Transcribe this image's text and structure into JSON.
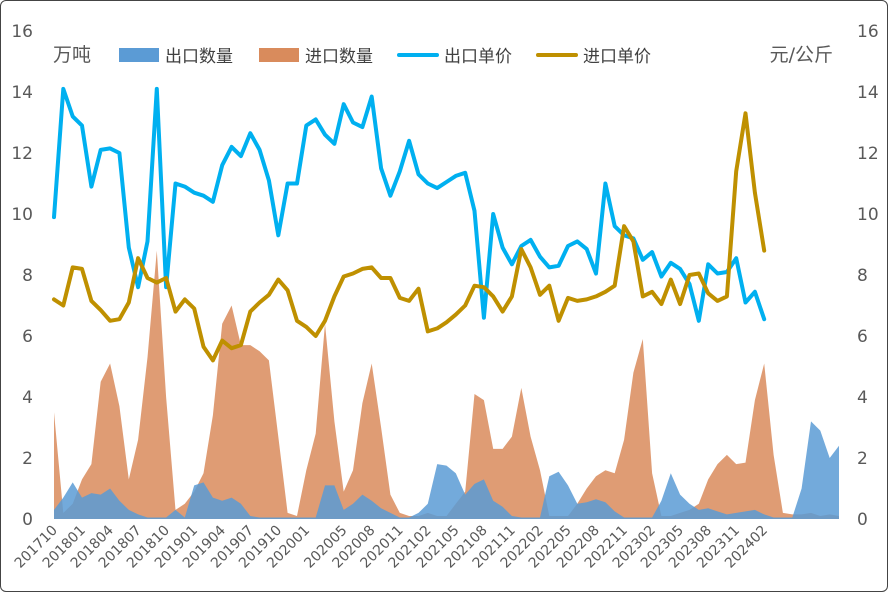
{
  "chart_data": {
    "type": "area+line",
    "title": "",
    "left_unit": "万吨",
    "right_unit": "元/公斤",
    "ylim_left": [
      0,
      16
    ],
    "ylim_right": [
      0,
      16
    ],
    "yticks": [
      "0",
      "2",
      "4",
      "6",
      "8",
      "10",
      "12",
      "14",
      "16"
    ],
    "grid": false,
    "legend_position": "top",
    "x_start": "201710",
    "x_end": "202403",
    "xtick_labels": [
      "201710",
      "201801",
      "201804",
      "201807",
      "201810",
      "201901",
      "201904",
      "201907",
      "201910",
      "202001",
      "202005",
      "202008",
      "202011",
      "202102",
      "202105",
      "202108",
      "202111",
      "202202",
      "202205",
      "202208",
      "202211",
      "202302",
      "202305",
      "202308",
      "202311",
      "202402"
    ],
    "series": [
      {
        "name": "出口数量",
        "kind": "area",
        "axis": "left",
        "color": "#5b9bd5",
        "values": [
          0.3,
          0.7,
          1.2,
          0.7,
          0.85,
          0.8,
          1.0,
          0.6,
          0.3,
          0.15,
          0.05,
          0.05,
          0.05,
          0.3,
          0.05,
          1.1,
          1.2,
          0.7,
          0.6,
          0.7,
          0.5,
          0.1,
          0.05,
          0.05,
          0.05,
          0.05,
          0.05,
          0.05,
          0.05,
          1.1,
          1.1,
          0.3,
          0.5,
          0.8,
          0.6,
          0.35,
          0.2,
          0.05,
          0.05,
          0.2,
          0.5,
          1.8,
          1.75,
          1.5,
          0.8,
          1.15,
          1.3,
          0.6,
          0.4,
          0.1,
          0.05,
          0.05,
          0.05,
          1.4,
          1.55,
          1.1,
          0.5,
          0.55,
          0.65,
          0.55,
          0.25,
          0.05,
          0.05,
          0.05,
          0.05,
          0.6,
          1.5,
          0.8,
          0.5,
          0.3,
          0.35,
          0.25,
          0.15,
          0.2,
          0.25,
          0.3,
          0.15,
          0.05,
          0.05,
          0.05,
          1.0,
          3.2,
          2.9,
          2.0,
          2.4
        ]
      },
      {
        "name": "进口数量",
        "kind": "area",
        "axis": "left",
        "color": "#d98b5c",
        "values": [
          3.5,
          0.2,
          0.5,
          1.3,
          1.8,
          4.5,
          5.1,
          3.7,
          1.3,
          2.6,
          5.3,
          8.8,
          4.0,
          0.3,
          0.5,
          0.9,
          1.5,
          3.4,
          6.4,
          7.0,
          5.7,
          5.7,
          5.5,
          5.2,
          2.7,
          0.2,
          0.1,
          1.6,
          2.8,
          6.4,
          3.2,
          0.9,
          1.6,
          3.8,
          5.1,
          3.0,
          0.8,
          0.2,
          0.1,
          0.1,
          0.2,
          0.1,
          0.1,
          0.5,
          0.9,
          4.1,
          3.9,
          2.3,
          2.3,
          2.7,
          4.3,
          2.7,
          1.6,
          0.1,
          0.1,
          0.1,
          0.5,
          1.0,
          1.4,
          1.6,
          1.5,
          2.6,
          4.8,
          5.9,
          1.5,
          0.1,
          0.1,
          0.2,
          0.3,
          0.5,
          1.3,
          1.8,
          2.1,
          1.8,
          1.85,
          3.9,
          5.1,
          2.1,
          0.2,
          0.15,
          0.15,
          0.2,
          0.1,
          0.15,
          0.1
        ]
      },
      {
        "name": "出口单价",
        "kind": "line",
        "axis": "right",
        "color": "#00b0f0",
        "values": [
          9.9,
          14.1,
          13.2,
          12.9,
          10.9,
          12.1,
          12.15,
          12.0,
          8.9,
          7.6,
          9.1,
          14.1,
          7.6,
          11.0,
          10.9,
          10.7,
          10.6,
          10.4,
          11.6,
          12.2,
          11.9,
          12.65,
          12.1,
          11.1,
          9.3,
          11.0,
          11.0,
          12.9,
          13.1,
          12.6,
          12.3,
          13.6,
          13.0,
          12.85,
          13.85,
          11.5,
          10.6,
          11.4,
          12.4,
          11.3,
          11.0,
          10.85,
          11.05,
          11.25,
          11.35,
          10.1,
          6.6,
          10.0,
          8.9,
          8.35,
          8.95,
          9.15,
          8.6,
          8.25,
          8.3,
          8.95,
          9.1,
          8.85,
          8.05,
          11.0,
          9.6,
          9.3,
          9.2,
          8.5,
          8.75,
          7.95,
          8.4,
          8.2,
          7.7,
          6.5,
          8.35,
          8.05,
          8.1,
          8.55,
          7.1,
          7.45,
          6.55
        ]
      },
      {
        "name": "进口单价",
        "kind": "line",
        "axis": "right",
        "color": "#bf9000",
        "values": [
          7.2,
          7.0,
          8.25,
          8.2,
          7.15,
          6.85,
          6.5,
          6.55,
          7.1,
          8.55,
          7.9,
          7.75,
          7.9,
          6.8,
          7.2,
          6.9,
          5.65,
          5.2,
          5.85,
          5.6,
          5.7,
          6.8,
          7.1,
          7.35,
          7.85,
          7.5,
          6.5,
          6.3,
          6.0,
          6.5,
          7.3,
          7.95,
          8.05,
          8.2,
          8.25,
          7.9,
          7.9,
          7.25,
          7.15,
          7.55,
          6.15,
          6.25,
          6.45,
          6.7,
          7.0,
          7.65,
          7.6,
          7.3,
          6.8,
          7.3,
          8.85,
          8.25,
          7.35,
          7.65,
          6.5,
          7.25,
          7.15,
          7.2,
          7.3,
          7.45,
          7.65,
          9.6,
          9.1,
          7.3,
          7.45,
          7.05,
          7.85,
          7.05,
          8.0,
          8.05,
          7.4,
          7.15,
          7.3,
          11.4,
          13.3,
          10.7,
          8.8
        ]
      }
    ]
  }
}
